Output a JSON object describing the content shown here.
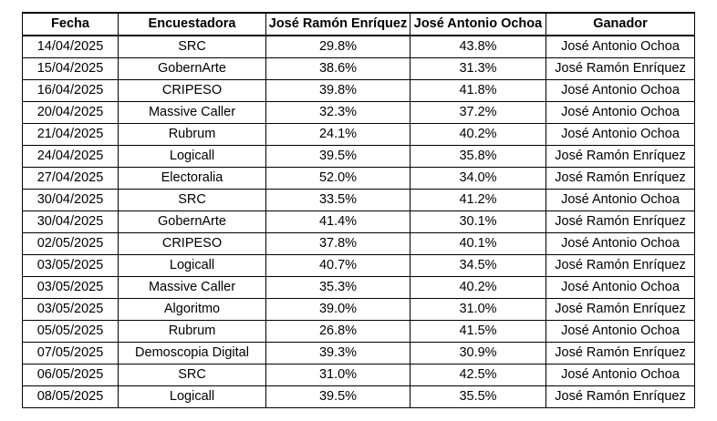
{
  "table": {
    "headers": [
      "Fecha",
      "Encuestadora",
      "José Ramón Enríquez",
      "José Antonio Ochoa",
      "Ganador"
    ],
    "rows": [
      [
        "14/04/2025",
        "SRC",
        "29.8%",
        "43.8%",
        "José Antonio Ochoa"
      ],
      [
        "15/04/2025",
        "GobernArte",
        "38.6%",
        "31.3%",
        "José Ramón Enríquez"
      ],
      [
        "16/04/2025",
        "CRIPESO",
        "39.8%",
        "41.8%",
        "José Antonio Ochoa"
      ],
      [
        "20/04/2025",
        "Massive Caller",
        "32.3%",
        "37.2%",
        "José Antonio Ochoa"
      ],
      [
        "21/04/2025",
        "Rubrum",
        "24.1%",
        "40.2%",
        "José Antonio Ochoa"
      ],
      [
        "24/04/2025",
        "Logicall",
        "39.5%",
        "35.8%",
        "José Ramón Enríquez"
      ],
      [
        "27/04/2025",
        "Electoralia",
        "52.0%",
        "34.0%",
        "José Ramón Enríquez"
      ],
      [
        "30/04/2025",
        "SRC",
        "33.5%",
        "41.2%",
        "José Antonio Ochoa"
      ],
      [
        "30/04/2025",
        "GobernArte",
        "41.4%",
        "30.1%",
        "José Ramón Enríquez"
      ],
      [
        "02/05/2025",
        "CRIPESO",
        "37.8%",
        "40.1%",
        "José Antonio Ochoa"
      ],
      [
        "03/05/2025",
        "Logicall",
        "40.7%",
        "34.5%",
        "José Ramón Enríquez"
      ],
      [
        "03/05/2025",
        "Massive Caller",
        "35.3%",
        "40.2%",
        "José Antonio Ochoa"
      ],
      [
        "03/05/2025",
        "Algoritmo",
        "39.0%",
        "31.0%",
        "José Ramón Enríquez"
      ],
      [
        "05/05/2025",
        "Rubrum",
        "26.8%",
        "41.5%",
        "José Antonio Ochoa"
      ],
      [
        "07/05/2025",
        "Demoscopia Digital",
        "39.3%",
        "30.9%",
        "José Ramón Enríquez"
      ],
      [
        "06/05/2025",
        "SRC",
        "31.0%",
        "42.5%",
        "José Antonio Ochoa"
      ],
      [
        "08/05/2025",
        "Logicall",
        "39.5%",
        "35.5%",
        "José Ramón Enríquez"
      ]
    ]
  }
}
